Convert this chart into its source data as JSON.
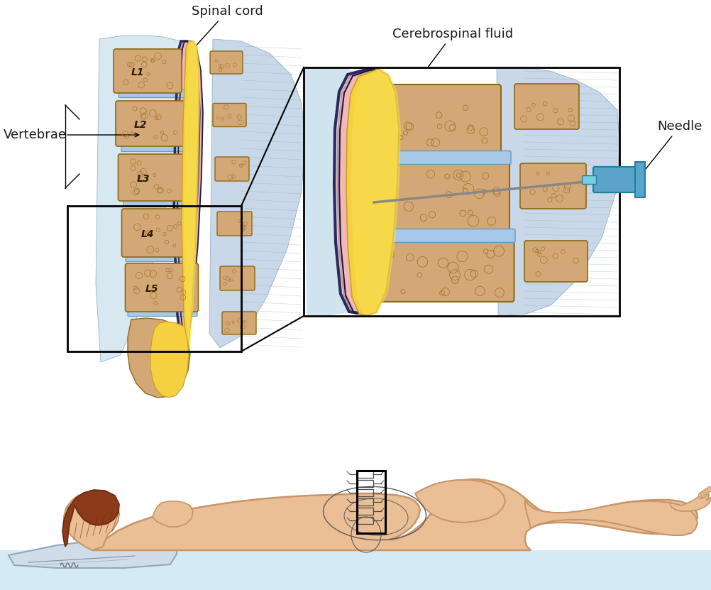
{
  "bg_color": "#ffffff",
  "labels": {
    "spinal_cord": "Spinal cord",
    "vertebrae": "Vertebrae",
    "csf": "Cerebrospinal fluid",
    "needle": "Needle"
  },
  "vertebra_labels": [
    "L1",
    "L2",
    "L3",
    "L4",
    "L5"
  ],
  "colors": {
    "vertebra_body": "#D4A876",
    "vertebra_outline": "#8B6914",
    "disc_blue": "#A8C8E8",
    "spinal_cord_yellow": "#F5D040",
    "dura_pink": "#F0B8B8",
    "needle_blue": "#5BA3C9",
    "skin_tone": "#EABF95",
    "skin_outline": "#C8956A",
    "hair_brown": "#8B3A1A",
    "floor_blue": "#D4EBF5",
    "text_color": "#1a1a1a",
    "muscle_blue": "#C8D8E8",
    "muscle_outline": "#8AAABB"
  }
}
